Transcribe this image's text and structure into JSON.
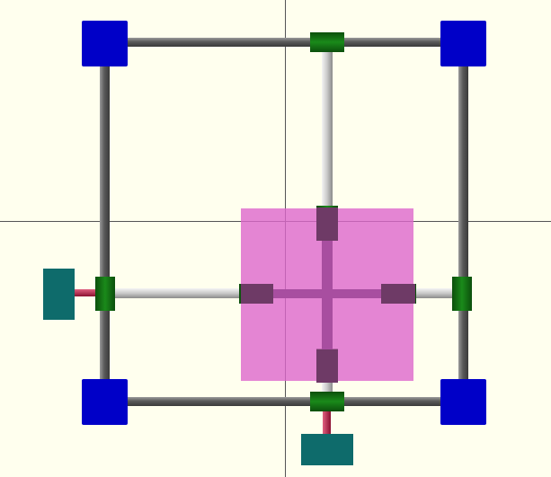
{
  "viewport": {
    "background": "#ffffee",
    "crosshair_color": "#555555",
    "view": "top"
  },
  "colors": {
    "corner_block": "#0000c8",
    "corner_block_shade": "#0000a0",
    "connector": "#117711",
    "connector_dark": "#0a5a0a",
    "rod": "#666666",
    "rod_light": "#d0d0d0",
    "end_block": "#0e6b6b",
    "end_rod": "#c8204a",
    "overlay": "#dd66cc",
    "overlay_opacity": 0.8,
    "overlay_slider": "#6e3a66"
  },
  "icons": {
    "corner_blocks": "square-icon",
    "connectors": "connector-icon",
    "end_blocks": "block-icon"
  }
}
